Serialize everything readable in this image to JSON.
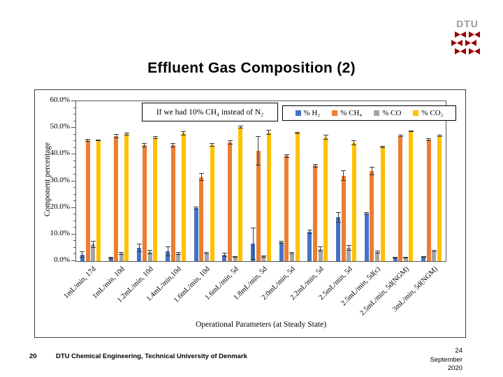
{
  "slide": {
    "logo_text": "DTU",
    "title": "Effluent Gas Composition (2)",
    "page_number": "20",
    "footer_left": "DTU Chemical Engineering, Technical University of Denmark",
    "date_lines": [
      "24",
      "September",
      "2020"
    ]
  },
  "chart_data": {
    "type": "bar",
    "annotation": "If we had 10% CH₄ instead of N₂",
    "xlabel": "Operational Parameters (at Steady State)",
    "ylabel": "Component percentage",
    "ylim": [
      0,
      60
    ],
    "ytick_labels": [
      "60.0%",
      "50.0%",
      "40.0%",
      "30.0%",
      "20.0%",
      "10.0%",
      "0.0%"
    ],
    "y_major_step": 10,
    "y_minor_step": 2.5,
    "grid": false,
    "legend_position": "top-right-inside",
    "error_bars": true,
    "categories": [
      "1mL/min, 17d",
      "1mL/min, 10d",
      "1.2mL/min, 10d",
      "1.4mL/min,10d",
      "1.6mL/min, 10d",
      "1.6mL/min, 5d",
      "1.8mL/min, 5d",
      "2.0mL/min, 5d",
      "2.2mL/min, 5d",
      "2.5mL/min, 5d",
      "2.5mL/min, 5d(c)",
      "2.5mL/min, 5d(NGM)",
      "3mL/min, 5d(NGM)"
    ],
    "series": [
      {
        "name": "% H₂",
        "color": "#4472C4",
        "values": [
          2.4,
          1.2,
          5.0,
          3.7,
          20.0,
          2.4,
          6.5,
          7.0,
          11.0,
          16.4,
          17.9,
          1.4,
          1.6
        ],
        "errors": [
          1.2,
          0.4,
          1.5,
          1.8,
          0.5,
          0.8,
          6.0,
          0.5,
          0.7,
          2.0,
          0.4,
          0.2,
          0.2
        ]
      },
      {
        "name": "% CH₄",
        "color": "#ED7D31",
        "values": [
          45.3,
          47.0,
          43.5,
          43.5,
          31.5,
          44.5,
          41.3,
          39.5,
          35.8,
          32.1,
          33.8,
          47.0,
          45.5
        ],
        "errors": [
          0.6,
          0.8,
          0.8,
          0.8,
          1.5,
          0.8,
          5.5,
          0.6,
          0.7,
          2.0,
          1.5,
          0.3,
          0.5
        ]
      },
      {
        "name": "% CO",
        "color": "#A5A5A5",
        "values": [
          6.3,
          2.9,
          3.4,
          2.9,
          3.0,
          1.6,
          1.8,
          2.9,
          4.5,
          4.9,
          3.4,
          1.4,
          3.8
        ],
        "errors": [
          1.3,
          0.5,
          0.8,
          0.6,
          0.5,
          0.3,
          0.4,
          0.4,
          0.9,
          1.0,
          0.5,
          0.2,
          0.5
        ]
      },
      {
        "name": "% CO₂",
        "color": "#FFC000",
        "values": [
          45.3,
          47.6,
          46.4,
          47.9,
          43.6,
          50.2,
          48.3,
          48.1,
          46.4,
          44.4,
          42.9,
          48.8,
          47.0
        ],
        "errors": [
          0.3,
          0.5,
          0.5,
          0.8,
          0.6,
          0.5,
          0.9,
          0.4,
          0.9,
          1.0,
          0.4,
          0.3,
          0.3
        ]
      }
    ]
  }
}
